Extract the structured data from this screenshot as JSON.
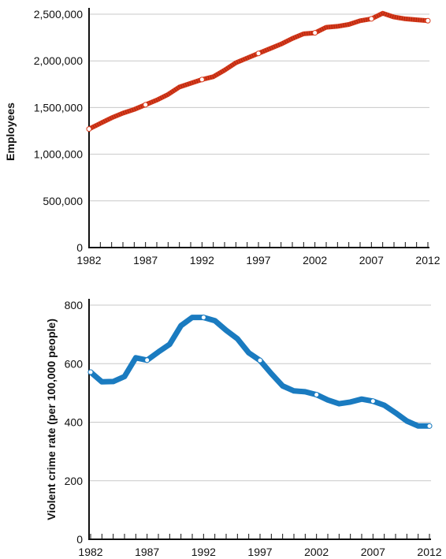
{
  "chart_data": [
    {
      "type": "line",
      "ylabel": "Employees",
      "xlim": [
        1982,
        2012
      ],
      "ylim": [
        0,
        2500000
      ],
      "grid": true,
      "x_ticks": [
        "1982",
        "1987",
        "1992",
        "1997",
        "2002",
        "2007",
        "2012"
      ],
      "y_ticks": [
        "0",
        "500,000",
        "1,000,000",
        "1,500,000",
        "2,000,000",
        "2,500,000"
      ],
      "x": [
        1982,
        1983,
        1984,
        1985,
        1986,
        1987,
        1988,
        1989,
        1990,
        1991,
        1992,
        1993,
        1994,
        1995,
        1996,
        1997,
        1998,
        1999,
        2000,
        2001,
        2002,
        2003,
        2004,
        2005,
        2006,
        2007,
        2008,
        2009,
        2010,
        2011,
        2012
      ],
      "values": [
        1270000,
        1330000,
        1390000,
        1440000,
        1480000,
        1530000,
        1580000,
        1640000,
        1720000,
        1760000,
        1800000,
        1830000,
        1900000,
        1980000,
        2030000,
        2080000,
        2130000,
        2180000,
        2240000,
        2290000,
        2300000,
        2360000,
        2370000,
        2390000,
        2430000,
        2450000,
        2510000,
        2470000,
        2450000,
        2440000,
        2430000
      ],
      "highlight_x": [
        1982,
        1987,
        1992,
        1997,
        2002,
        2007,
        2012
      ],
      "color": "#d83a1c",
      "stripe_color": "#8b1a08"
    },
    {
      "type": "line",
      "ylabel": "Violent crime rate (per 100,000 people)",
      "xlim": [
        1982,
        2012
      ],
      "ylim": [
        0,
        800
      ],
      "grid": true,
      "x_ticks": [
        "1982",
        "1987",
        "1992",
        "1997",
        "2002",
        "2007",
        "2012"
      ],
      "y_ticks": [
        "0",
        "200",
        "400",
        "600",
        "800"
      ],
      "x": [
        1982,
        1983,
        1984,
        1985,
        1986,
        1987,
        1988,
        1989,
        1990,
        1991,
        1992,
        1993,
        1994,
        1995,
        1996,
        1997,
        1998,
        1999,
        2000,
        2001,
        2002,
        2003,
        2004,
        2005,
        2006,
        2007,
        2008,
        2009,
        2010,
        2011,
        2012
      ],
      "values": [
        571,
        538,
        539,
        556,
        620,
        612,
        640,
        666,
        730,
        758,
        758,
        747,
        714,
        685,
        637,
        611,
        566,
        524,
        507,
        504,
        494,
        476,
        463,
        469,
        479,
        472,
        458,
        432,
        404,
        387,
        387
      ],
      "highlight_x": [
        1982,
        1987,
        1992,
        1997,
        2002,
        2007,
        2012
      ],
      "color": "#1a7bc0"
    }
  ]
}
